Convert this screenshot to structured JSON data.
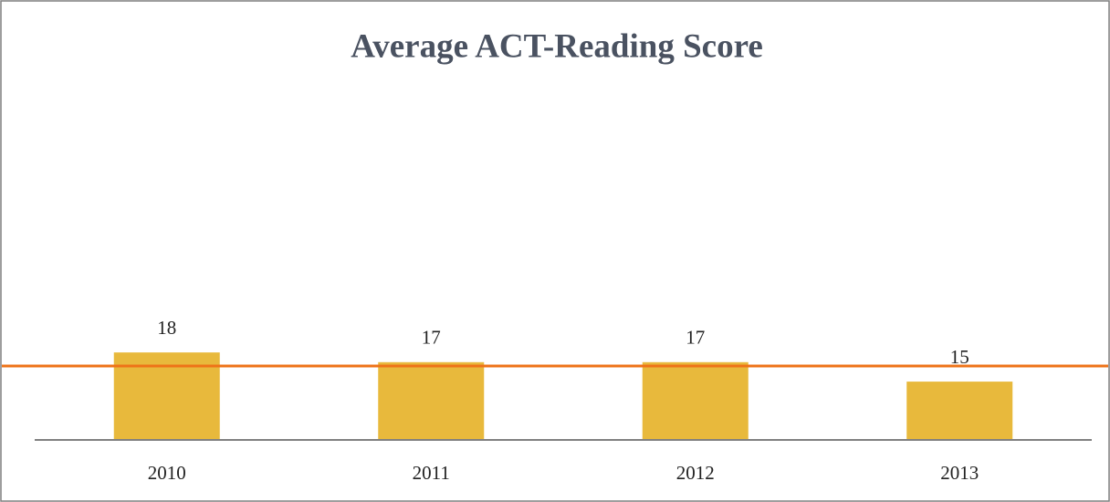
{
  "chart_data": {
    "type": "bar",
    "title": "Average ACT-Reading Score",
    "categories": [
      "2010",
      "2011",
      "2012",
      "2013"
    ],
    "values": [
      18,
      17,
      17,
      15
    ],
    "color": "#e8b93c",
    "ylim": [
      9,
      29
    ],
    "reference_line": {
      "value": 16.6,
      "color": "#ee7318"
    }
  }
}
